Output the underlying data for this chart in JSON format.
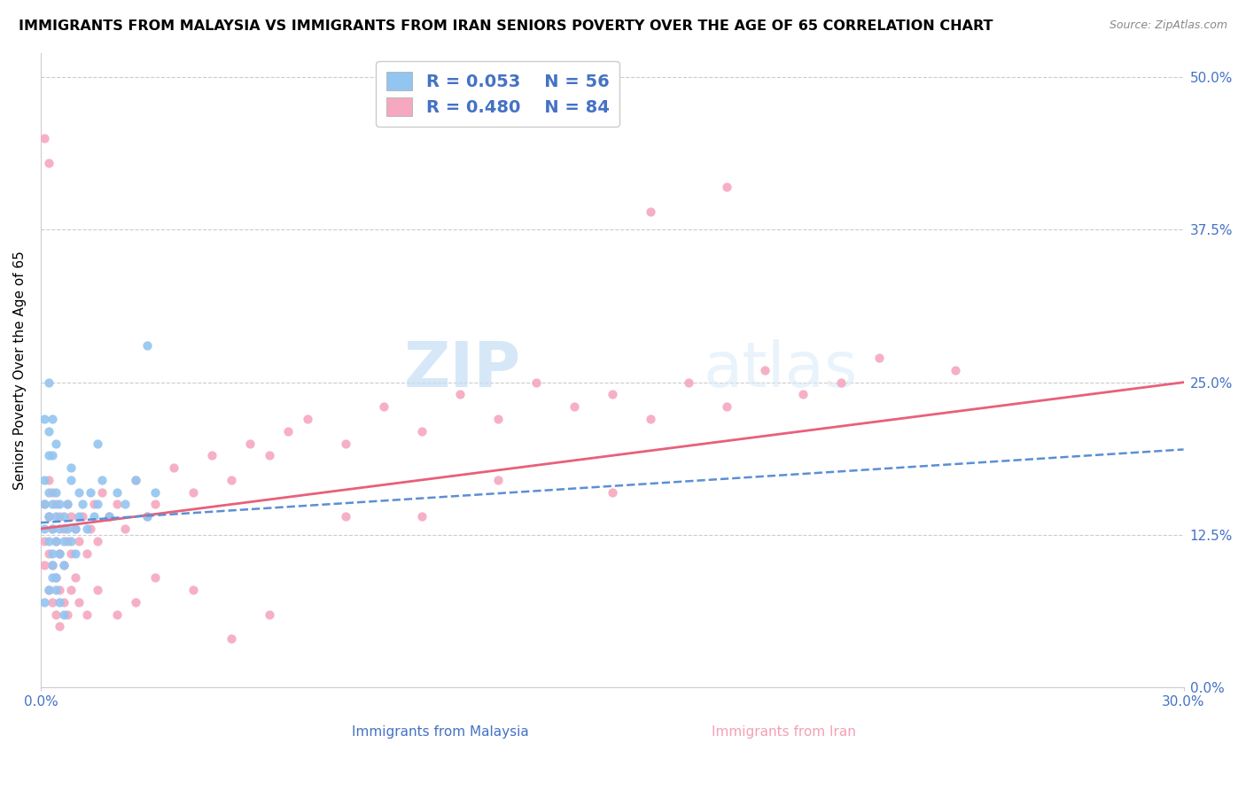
{
  "title": "IMMIGRANTS FROM MALAYSIA VS IMMIGRANTS FROM IRAN SENIORS POVERTY OVER THE AGE OF 65 CORRELATION CHART",
  "source": "Source: ZipAtlas.com",
  "ylabel": "Seniors Poverty Over the Age of 65",
  "xlabel_malaysia": "Immigrants from Malaysia",
  "xlabel_iran": "Immigrants from Iran",
  "x_min": 0.0,
  "x_max": 0.3,
  "y_min": 0.0,
  "y_max": 0.52,
  "yticks": [
    0.0,
    0.125,
    0.25,
    0.375,
    0.5
  ],
  "ytick_labels": [
    "0.0%",
    "12.5%",
    "25.0%",
    "37.5%",
    "50.0%"
  ],
  "x_ticks": [
    0.0,
    0.3
  ],
  "xtick_labels": [
    "0.0%",
    "30.0%"
  ],
  "malaysia_R": 0.053,
  "malaysia_N": 56,
  "iran_R": 0.48,
  "iran_N": 84,
  "malaysia_color": "#92c5f0",
  "iran_color": "#f5a8c0",
  "malaysia_line_color": "#5b8fd4",
  "iran_line_color": "#e8607a",
  "background_color": "#ffffff",
  "grid_color": "#cccccc",
  "watermark_zip": "ZIP",
  "watermark_atlas": "atlas",
  "title_fontsize": 11.5,
  "axis_label_fontsize": 11,
  "tick_label_fontsize": 11,
  "legend_fontsize": 14,
  "malaysia_x": [
    0.001,
    0.001,
    0.001,
    0.002,
    0.002,
    0.002,
    0.002,
    0.003,
    0.003,
    0.003,
    0.003,
    0.004,
    0.004,
    0.004,
    0.004,
    0.005,
    0.005,
    0.005,
    0.006,
    0.006,
    0.006,
    0.007,
    0.007,
    0.008,
    0.008,
    0.009,
    0.009,
    0.01,
    0.01,
    0.011,
    0.012,
    0.013,
    0.014,
    0.015,
    0.016,
    0.018,
    0.02,
    0.022,
    0.025,
    0.028,
    0.03,
    0.001,
    0.002,
    0.003,
    0.004,
    0.005,
    0.006,
    0.002,
    0.003,
    0.004,
    0.001,
    0.002,
    0.003,
    0.008,
    0.015,
    0.028
  ],
  "malaysia_y": [
    0.13,
    0.15,
    0.17,
    0.12,
    0.14,
    0.16,
    0.19,
    0.11,
    0.13,
    0.15,
    0.1,
    0.12,
    0.14,
    0.16,
    0.09,
    0.13,
    0.15,
    0.11,
    0.12,
    0.14,
    0.1,
    0.13,
    0.15,
    0.12,
    0.17,
    0.13,
    0.11,
    0.14,
    0.16,
    0.15,
    0.13,
    0.16,
    0.14,
    0.15,
    0.17,
    0.14,
    0.16,
    0.15,
    0.17,
    0.14,
    0.16,
    0.07,
    0.08,
    0.09,
    0.08,
    0.07,
    0.06,
    0.21,
    0.22,
    0.2,
    0.22,
    0.25,
    0.19,
    0.18,
    0.2,
    0.28
  ],
  "iran_x": [
    0.001,
    0.001,
    0.001,
    0.002,
    0.002,
    0.002,
    0.003,
    0.003,
    0.003,
    0.004,
    0.004,
    0.004,
    0.005,
    0.005,
    0.005,
    0.006,
    0.006,
    0.007,
    0.007,
    0.008,
    0.008,
    0.009,
    0.009,
    0.01,
    0.011,
    0.012,
    0.013,
    0.014,
    0.015,
    0.016,
    0.018,
    0.02,
    0.022,
    0.025,
    0.028,
    0.03,
    0.035,
    0.04,
    0.045,
    0.05,
    0.055,
    0.06,
    0.065,
    0.07,
    0.08,
    0.09,
    0.1,
    0.11,
    0.12,
    0.13,
    0.14,
    0.15,
    0.16,
    0.17,
    0.18,
    0.19,
    0.2,
    0.21,
    0.22,
    0.24,
    0.002,
    0.003,
    0.004,
    0.005,
    0.006,
    0.007,
    0.008,
    0.01,
    0.012,
    0.015,
    0.02,
    0.025,
    0.03,
    0.04,
    0.05,
    0.06,
    0.08,
    0.1,
    0.12,
    0.15,
    0.001,
    0.002,
    0.16,
    0.18
  ],
  "iran_y": [
    0.12,
    0.15,
    0.1,
    0.11,
    0.14,
    0.17,
    0.1,
    0.13,
    0.16,
    0.09,
    0.12,
    0.15,
    0.11,
    0.14,
    0.08,
    0.13,
    0.1,
    0.12,
    0.15,
    0.11,
    0.14,
    0.09,
    0.13,
    0.12,
    0.14,
    0.11,
    0.13,
    0.15,
    0.12,
    0.16,
    0.14,
    0.15,
    0.13,
    0.17,
    0.14,
    0.15,
    0.18,
    0.16,
    0.19,
    0.17,
    0.2,
    0.19,
    0.21,
    0.22,
    0.2,
    0.23,
    0.21,
    0.24,
    0.22,
    0.25,
    0.23,
    0.24,
    0.22,
    0.25,
    0.23,
    0.26,
    0.24,
    0.25,
    0.27,
    0.26,
    0.08,
    0.07,
    0.06,
    0.05,
    0.07,
    0.06,
    0.08,
    0.07,
    0.06,
    0.08,
    0.06,
    0.07,
    0.09,
    0.08,
    0.04,
    0.06,
    0.14,
    0.14,
    0.17,
    0.16,
    0.45,
    0.43,
    0.39,
    0.41
  ]
}
